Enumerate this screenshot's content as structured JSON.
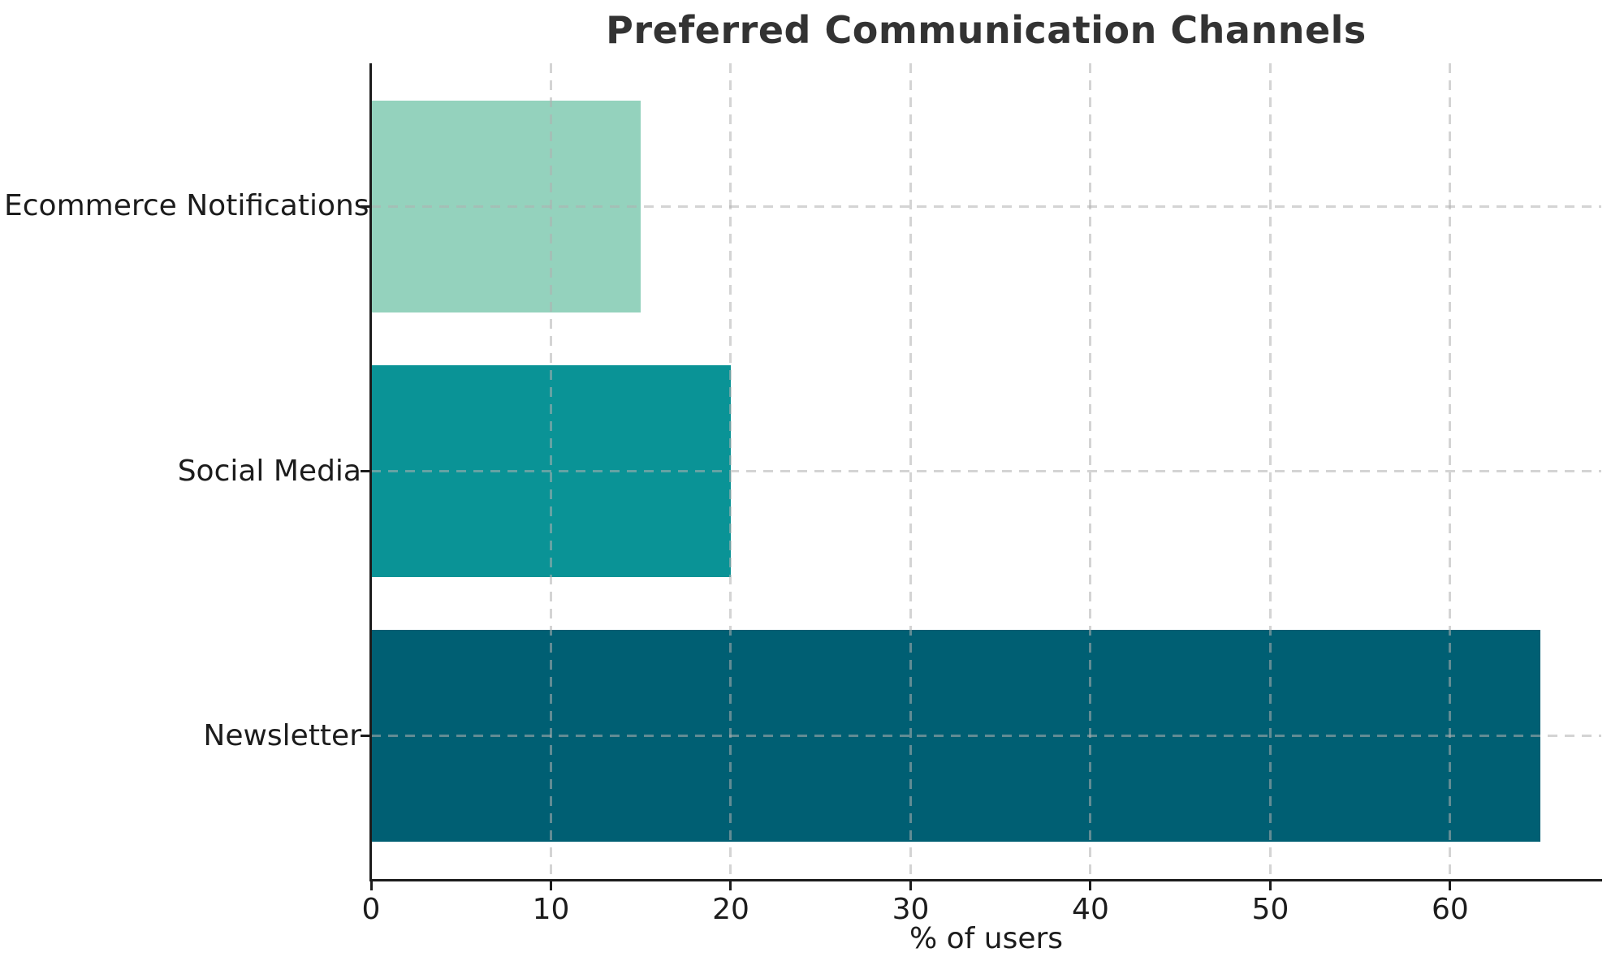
{
  "chart_data": {
    "type": "bar",
    "orientation": "horizontal",
    "title": "Preferred Communication Channels",
    "xlabel": "% of users",
    "ylabel": "",
    "categories": [
      "Ecommerce Notifications",
      "Social Media",
      "Newsletter"
    ],
    "values": [
      15,
      20,
      65
    ],
    "bar_colors": [
      "#94d2bd",
      "#0a9396",
      "#005f73"
    ],
    "xticks": [
      0,
      10,
      20,
      30,
      40,
      50,
      60
    ],
    "xlim": [
      0,
      68.4
    ],
    "ylim_units": [
      -0.54,
      2.54
    ],
    "bar_height_units": 0.8,
    "grid": {
      "on": true,
      "style": "dashed",
      "color": "#b0b0b0",
      "opacity": 0.55,
      "over_bars": true
    },
    "legend": "none",
    "axis_color": "#1c1c1c",
    "title_color": "#333333",
    "background_color": "#ffffff"
  }
}
